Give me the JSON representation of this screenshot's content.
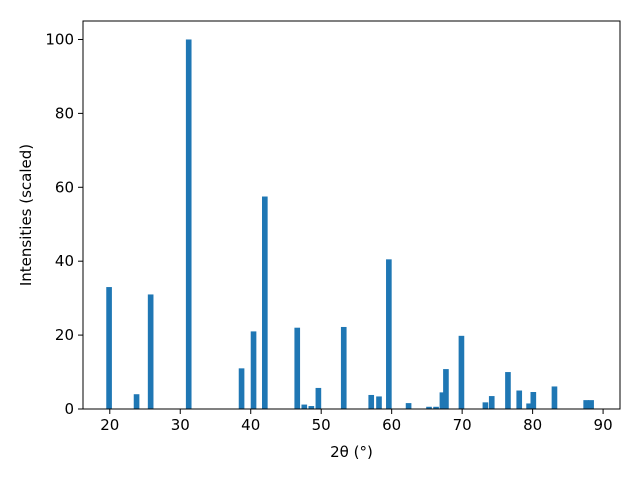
{
  "chart_data": {
    "type": "bar",
    "title": "",
    "xlabel": "2θ (°)",
    "ylabel": "Intensities (scaled)",
    "xlim": [
      16.2,
      92.4
    ],
    "ylim": [
      0,
      105
    ],
    "xticks": [
      20,
      30,
      40,
      50,
      60,
      70,
      80,
      90
    ],
    "yticks": [
      0,
      20,
      40,
      60,
      80,
      100
    ],
    "bar_width": 0.8,
    "bar_color": "#1f77b4",
    "grid": false,
    "series": [
      {
        "x": [
          19.9,
          23.8,
          25.8,
          31.2,
          38.7,
          40.4,
          42.0,
          46.6,
          47.6,
          48.6,
          49.6,
          53.2,
          57.1,
          58.2,
          59.6,
          62.4,
          65.3,
          66.3,
          67.2,
          67.7,
          69.9,
          73.3,
          74.2,
          76.5,
          78.1,
          79.5,
          80.1,
          83.1,
          87.6,
          88.3
        ],
        "values": [
          33,
          4,
          31,
          100,
          11,
          21,
          57.5,
          22,
          1.2,
          0.8,
          5.7,
          22.2,
          3.8,
          3.4,
          40.5,
          1.6,
          0.6,
          0.6,
          4.5,
          10.8,
          19.8,
          1.8,
          3.5,
          10,
          5,
          1.5,
          4.6,
          6.1,
          2.4,
          2.4
        ]
      }
    ]
  }
}
